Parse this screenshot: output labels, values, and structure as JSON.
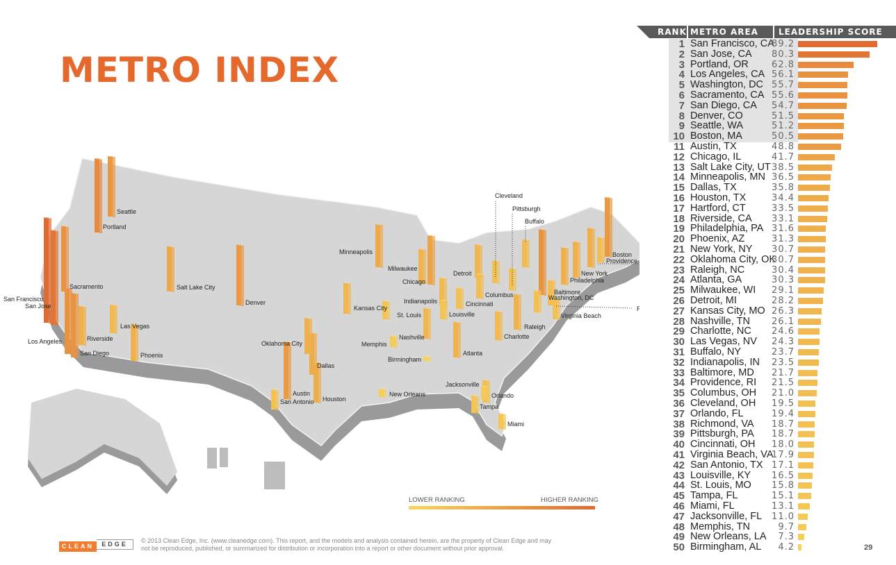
{
  "title": "METRO INDEX",
  "legend": {
    "low": "LOWER RANKING",
    "high": "HIGHER RANKING",
    "low_color": "#f7d75c",
    "high_color": "#e0692f"
  },
  "footer": {
    "logo_left": "CLEAN",
    "logo_right": "EDGE",
    "copyright": "© 2013 Clean Edge, Inc. (www.cleanedge.com). This report, and the models and analysis contained herein, are the property of Clean Edge and may not be reproduced, published, or summarized for distribution or incorporation into a report or other document without prior approval.",
    "page_number": "29"
  },
  "chart_data": {
    "type": "bar",
    "orientation": "horizontal",
    "columns": [
      "RANK",
      "METRO AREA",
      "LEADERSHIP SCORE"
    ],
    "highlighted_top": 10,
    "categories": [
      "San Francisco, CA",
      "San Jose, CA",
      "Portland, OR",
      "Los Angeles, CA",
      "Washington, DC",
      "Sacramento, CA",
      "San Diego, CA",
      "Denver, CO",
      "Seattle, WA",
      "Boston, MA",
      "Austin, TX",
      "Chicago, IL",
      "Salt Lake City, UT",
      "Minneapolis, MN",
      "Dallas, TX",
      "Houston, TX",
      "Hartford, CT",
      "Riverside, CA",
      "Philadelphia, PA",
      "Phoenix, AZ",
      "New York, NY",
      "Oklahoma City, OK",
      "Raleigh, NC",
      "Atlanta, GA",
      "Milwaukee, WI",
      "Detroit, MI",
      "Kansas City, MO",
      "Nashville, TN",
      "Charlotte, NC",
      "Las Vegas, NV",
      "Buffalo, NY",
      "Indianapolis, IN",
      "Baltimore, MD",
      "Providence, RI",
      "Columbus, OH",
      "Cleveland, OH",
      "Orlando, FL",
      "Richmond, VA",
      "Pittsburgh, PA",
      "Cincinnati, OH",
      "Virginia Beach, VA",
      "San Antonio, TX",
      "Louisville, KY",
      "St. Louis, MO",
      "Tampa, FL",
      "Miami, FL",
      "Jacksonville, FL",
      "Memphis, TN",
      "New Orleans, LA",
      "Birmingham, AL"
    ],
    "values": [
      "89.2",
      "80.3",
      "62.8",
      "56.1",
      "55.7",
      "55.6",
      "54.7",
      "51.5",
      "51.2",
      "50.5",
      "48.8",
      "41.7",
      "38.5",
      "36.5",
      "35.8",
      "34.4",
      "33.5",
      "33.1",
      "31.6",
      "31.3",
      "30.7",
      "30.7",
      "30.4",
      "30.3",
      "29.1",
      "28.2",
      "26.3",
      "26.1",
      "24.6",
      "24.3",
      "23.7",
      "23.5",
      "21.7",
      "21.5",
      "21.0",
      "19.5",
      "19.4",
      "18.7",
      "18.7",
      "18.0",
      "17.9",
      "17.1",
      "16.5",
      "15.8",
      "15.1",
      "13.1",
      "11.0",
      "9.7",
      "7.3",
      "4.2"
    ],
    "xlim": [
      0,
      100
    ]
  },
  "map": {
    "labels": [
      "San Francisco",
      "San Jose",
      "Portland",
      "Los Angeles",
      "Washington, DC",
      "Sacramento",
      "San Diego",
      "Denver",
      "Seattle",
      "Boston",
      "Austin",
      "Chicago",
      "Salt Lake City",
      "Minneapolis",
      "Dallas",
      "Houston",
      "Hartford",
      "Riverside",
      "Philadelphia",
      "Phoenix",
      "New York",
      "Oklahoma City",
      "Raleigh",
      "Atlanta",
      "Milwaukee",
      "Detroit",
      "Kansas City",
      "Nashville",
      "Charlotte",
      "Las Vegas",
      "Buffalo",
      "Indianapolis",
      "Baltimore",
      "Providence",
      "Columbus",
      "Cleveland",
      "Orlando",
      "Richmond",
      "Pittsburgh",
      "Cincinnati",
      "Virginia Beach",
      "San Antonio",
      "Louisville",
      "St. Louis",
      "Tampa",
      "Miami",
      "Jacksonville",
      "Memphis",
      "New Orleans",
      "Birmingham"
    ]
  }
}
